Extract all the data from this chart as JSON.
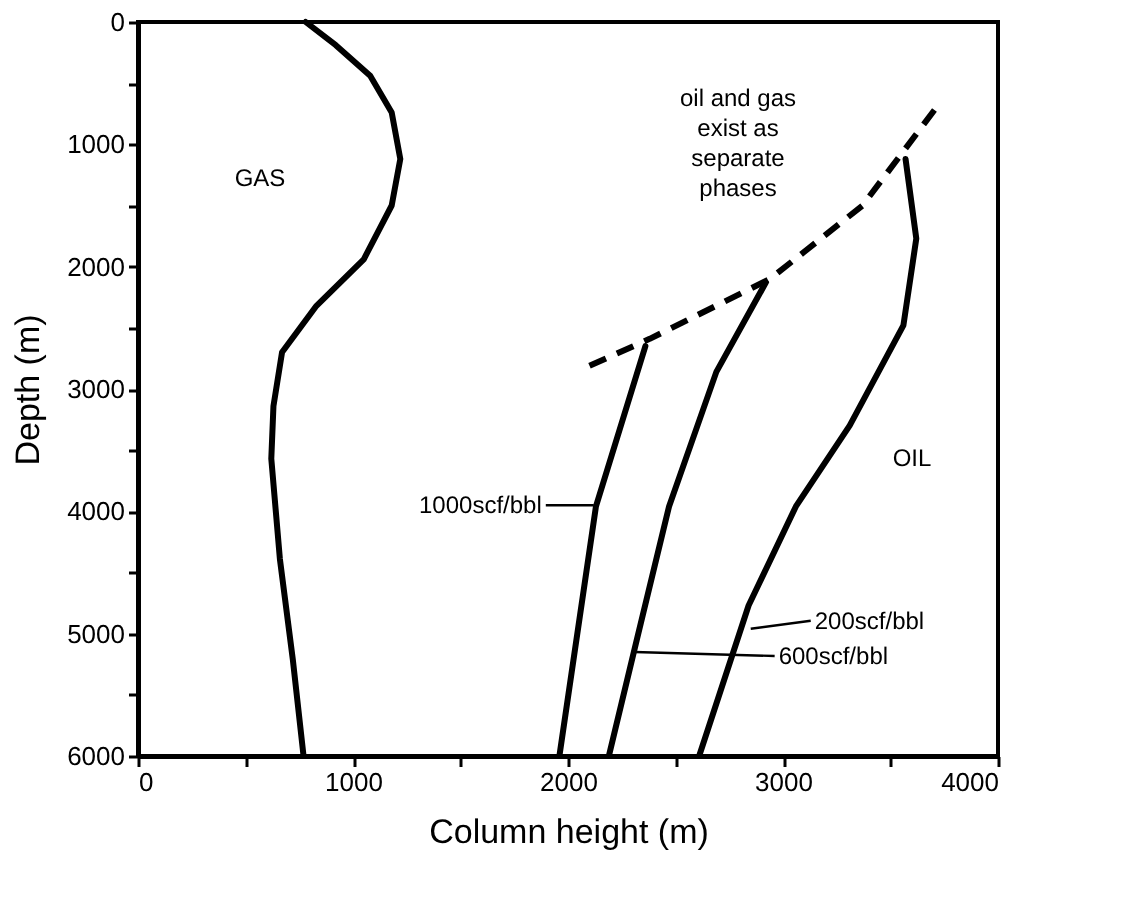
{
  "chart_data": {
    "type": "line",
    "xlabel": "Column height (m)",
    "ylabel": "Depth (m)",
    "xlim": [
      0,
      4000
    ],
    "ylim": [
      6000,
      0
    ],
    "xticks": [
      0,
      {
        "value": 500,
        "label": null
      },
      1000,
      {
        "value": 1500,
        "label": null
      },
      2000,
      {
        "value": 2500,
        "label": null
      },
      3000,
      {
        "value": 3500,
        "label": null
      },
      4000
    ],
    "yticks": [
      0,
      {
        "value": 500,
        "label": null
      },
      1000,
      {
        "value": 1500,
        "label": null
      },
      2000,
      {
        "value": 2500,
        "label": null
      },
      3000,
      {
        "value": 3500,
        "label": null
      },
      4000,
      {
        "value": 4500,
        "label": null
      },
      5000,
      {
        "value": 5500,
        "label": null
      },
      6000
    ],
    "grid": false,
    "marker": "none",
    "series": [
      {
        "color": "#000000",
        "line_style": "solid",
        "x": [
          780,
          920,
          1080,
          1180,
          1220,
          1180,
          1050,
          830,
          670,
          630,
          620,
          660,
          720,
          770
        ],
        "values": [
          0,
          190,
          440,
          740,
          1120,
          1500,
          1940,
          2320,
          2700,
          3140,
          3570,
          4390,
          5210,
          6000
        ]
      },
      {
        "color": "#000000",
        "line_style": "solid",
        "x": [
          2360,
          2130,
          1960
        ],
        "values": [
          2650,
          3960,
          6000
        ]
      },
      {
        "color": "#000000",
        "line_style": "solid",
        "x": [
          2920,
          2690,
          2470,
          2320,
          2190
        ],
        "values": [
          2130,
          2860,
          3960,
          5050,
          6000
        ]
      },
      {
        "color": "#000000",
        "line_style": "solid",
        "x": [
          3570,
          3620,
          3560,
          3310,
          3060,
          2840,
          2610
        ],
        "values": [
          1120,
          1770,
          2480,
          3300,
          3960,
          4770,
          6000
        ]
      },
      {
        "color": "#000000",
        "line_style": "dashed",
        "x": [
          2100,
          2380,
          2940,
          3370,
          3730
        ],
        "values": [
          2810,
          2590,
          2100,
          1500,
          660
        ]
      }
    ],
    "annotations": [
      "GAS",
      "OIL",
      "oil and gas\nexist as\nseparate\nphases",
      {
        "text": "1000scf/bbl",
        "x": 2120,
        "y": 3950
      },
      {
        "text": "200scf/bbl",
        "x": 2850,
        "y": 4960
      },
      {
        "text": "600scf/bbl",
        "x": 2310,
        "y": 5150
      }
    ]
  }
}
